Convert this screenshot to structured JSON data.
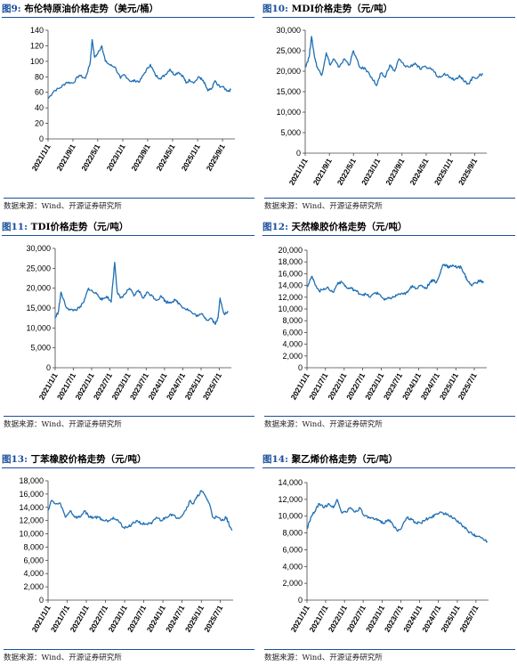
{
  "source_note": "数据来源：Wind、开源证券研究所",
  "line_color": "#1f6fb4",
  "chart_data": [
    {
      "id": "brent",
      "type": "line",
      "fig": "图9:",
      "title": "布伦特原油价格走势（美元/桶）",
      "ylim": [
        0,
        140
      ],
      "yticks": [
        0,
        20,
        40,
        60,
        80,
        100,
        120,
        140
      ],
      "xlim": [
        "2021-01-01",
        "2025-12-31"
      ],
      "xticks": [
        "2021/1/1",
        "2021/9/1",
        "2022/5/1",
        "2023/1/1",
        "2023/9/1",
        "2024/5/1",
        "2025/1/1",
        "2025/9/1"
      ],
      "x": [
        "2021-01-01",
        "2021-03-01",
        "2021-05-01",
        "2021-07-01",
        "2021-09-01",
        "2021-11-01",
        "2022-01-01",
        "2022-02-15",
        "2022-03-08",
        "2022-04-01",
        "2022-05-01",
        "2022-06-10",
        "2022-07-15",
        "2022-09-01",
        "2022-10-15",
        "2022-12-10",
        "2023-01-15",
        "2023-03-20",
        "2023-05-01",
        "2023-06-15",
        "2023-08-01",
        "2023-09-27",
        "2023-11-15",
        "2024-01-01",
        "2024-02-15",
        "2024-04-05",
        "2024-05-15",
        "2024-07-01",
        "2024-08-15",
        "2024-09-10",
        "2024-10-15",
        "2024-12-01",
        "2025-01-15",
        "2025-02-15",
        "2025-03-15",
        "2025-04-10",
        "2025-05-15",
        "2025-06-20",
        "2025-07-15",
        "2025-09-01",
        "2025-10-20",
        "2025-11-20"
      ],
      "y": [
        52,
        62,
        66,
        73,
        72,
        82,
        78,
        97,
        128,
        105,
        110,
        120,
        100,
        95,
        93,
        78,
        83,
        74,
        75,
        74,
        85,
        96,
        82,
        78,
        82,
        90,
        83,
        86,
        80,
        72,
        76,
        73,
        80,
        76,
        70,
        62,
        64,
        75,
        69,
        67,
        62,
        63
      ]
    },
    {
      "id": "mdi",
      "type": "line",
      "fig": "图10:",
      "title": "MDI价格走势（元/吨）",
      "ylim": [
        0,
        30000
      ],
      "yticks": [
        0,
        5000,
        10000,
        15000,
        20000,
        25000,
        30000
      ],
      "xlim": [
        "2021-01-01",
        "2025-12-31"
      ],
      "xticks": [
        "2021/1/1",
        "2021/9/1",
        "2022/5/1",
        "2023/1/1",
        "2023/9/1",
        "2024/5/1",
        "2025/1/1",
        "2025/9/1"
      ],
      "x": [
        "2021-01-01",
        "2021-02-10",
        "2021-03-05",
        "2021-04-01",
        "2021-05-01",
        "2021-06-15",
        "2021-08-01",
        "2021-09-10",
        "2021-10-15",
        "2021-12-01",
        "2022-02-01",
        "2022-03-20",
        "2022-05-01",
        "2022-07-01",
        "2022-09-01",
        "2022-11-01",
        "2022-12-20",
        "2023-02-01",
        "2023-03-15",
        "2023-05-01",
        "2023-06-20",
        "2023-08-01",
        "2023-09-20",
        "2023-11-15",
        "2024-01-10",
        "2024-03-01",
        "2024-05-01",
        "2024-07-01",
        "2024-09-01",
        "2024-11-01",
        "2025-01-01",
        "2025-02-15",
        "2025-04-01",
        "2025-05-15",
        "2025-07-01",
        "2025-08-15",
        "2025-10-01",
        "2025-11-20"
      ],
      "y": [
        21000,
        23500,
        28500,
        24000,
        21000,
        19000,
        24500,
        21500,
        23000,
        21000,
        23000,
        21500,
        25000,
        21000,
        20500,
        18500,
        16500,
        19500,
        18500,
        21500,
        20000,
        23000,
        21500,
        21000,
        22000,
        20500,
        21000,
        20500,
        18500,
        19500,
        18500,
        18000,
        19000,
        17500,
        17000,
        18500,
        18500,
        19500
      ]
    },
    {
      "id": "tdi",
      "type": "line",
      "fig": "图11:",
      "title": "TDI价格走势（元/吨）",
      "ylim": [
        0,
        30000
      ],
      "yticks": [
        0,
        5000,
        10000,
        15000,
        20000,
        25000,
        30000
      ],
      "xlim": [
        "2021-01-01",
        "2025-10-31"
      ],
      "xticks": [
        "2021/1/1",
        "2021/7/1",
        "2022/1/1",
        "2022/7/1",
        "2023/1/1",
        "2023/7/1",
        "2024/1/1",
        "2024/7/1",
        "2025/1/1",
        "2025/7/1"
      ],
      "x": [
        "2021-01-01",
        "2021-02-01",
        "2021-03-01",
        "2021-04-15",
        "2021-06-01",
        "2021-07-15",
        "2021-09-01",
        "2021-10-15",
        "2021-12-01",
        "2022-01-15",
        "2022-03-01",
        "2022-04-15",
        "2022-06-01",
        "2022-07-15",
        "2022-08-20",
        "2022-09-15",
        "2022-10-15",
        "2022-12-01",
        "2023-01-15",
        "2023-03-01",
        "2023-04-15",
        "2023-06-01",
        "2023-07-15",
        "2023-09-01",
        "2023-10-15",
        "2023-12-01",
        "2024-01-15",
        "2024-03-01",
        "2024-04-15",
        "2024-06-01",
        "2024-07-15",
        "2024-09-01",
        "2024-10-15",
        "2024-12-01",
        "2025-01-15",
        "2025-03-01",
        "2025-04-15",
        "2025-05-20",
        "2025-06-20",
        "2025-07-10",
        "2025-08-20",
        "2025-09-30"
      ],
      "y": [
        12500,
        14000,
        19000,
        15500,
        14500,
        14500,
        15000,
        16500,
        20000,
        19000,
        18500,
        17000,
        18000,
        16500,
        26500,
        19000,
        17500,
        18500,
        20000,
        18000,
        19500,
        17500,
        19000,
        18000,
        17000,
        18000,
        16500,
        16500,
        17000,
        16000,
        15000,
        14500,
        13500,
        13000,
        13500,
        12000,
        12500,
        11000,
        12500,
        17500,
        13500,
        14000
      ]
    },
    {
      "id": "natural-rubber",
      "type": "line",
      "fig": "图12:",
      "title": "天然橡胶价格走势（元/吨）",
      "ylim": [
        0,
        20000
      ],
      "yticks": [
        0,
        2000,
        4000,
        6000,
        8000,
        10000,
        12000,
        14000,
        16000,
        18000,
        20000
      ],
      "xlim": [
        "2021-01-01",
        "2025-10-31"
      ],
      "xticks": [
        "2021/1/1",
        "2021/7/1",
        "2022/1/1",
        "2022/7/1",
        "2023/1/1",
        "2023/7/1",
        "2024/1/1",
        "2024/7/1",
        "2025/1/1",
        "2025/7/1"
      ],
      "x": [
        "2021-01-01",
        "2021-02-15",
        "2021-03-15",
        "2021-05-01",
        "2021-06-15",
        "2021-08-01",
        "2021-09-15",
        "2021-11-01",
        "2021-12-15",
        "2022-02-01",
        "2022-03-15",
        "2022-05-01",
        "2022-06-15",
        "2022-08-01",
        "2022-09-15",
        "2022-11-01",
        "2022-12-15",
        "2023-02-01",
        "2023-03-15",
        "2023-05-01",
        "2023-06-15",
        "2023-08-01",
        "2023-09-15",
        "2023-11-01",
        "2023-12-15",
        "2024-02-01",
        "2024-03-15",
        "2024-04-20",
        "2024-05-20",
        "2024-06-25",
        "2024-07-20",
        "2024-08-25",
        "2024-10-01",
        "2024-10-25",
        "2024-12-01",
        "2025-01-15",
        "2025-02-20",
        "2025-03-25",
        "2025-04-20",
        "2025-06-01",
        "2025-07-15",
        "2025-08-25",
        "2025-09-30"
      ],
      "y": [
        13800,
        15500,
        14500,
        13000,
        13500,
        13500,
        12800,
        14500,
        14500,
        13500,
        13500,
        13000,
        12500,
        12500,
        12000,
        12800,
        12500,
        11500,
        11800,
        12000,
        12500,
        12500,
        12800,
        14000,
        13500,
        14000,
        13500,
        14500,
        15000,
        14500,
        15500,
        17500,
        17500,
        17000,
        17500,
        17000,
        17200,
        16000,
        15000,
        14000,
        14500,
        14800,
        14500
      ]
    },
    {
      "id": "sbr",
      "type": "line",
      "fig": "图13:",
      "title": "丁苯橡胶价格走势（元/吨）",
      "ylim": [
        0,
        18000
      ],
      "yticks": [
        0,
        2000,
        4000,
        6000,
        8000,
        10000,
        12000,
        14000,
        16000,
        18000
      ],
      "xlim": [
        "2021-01-01",
        "2025-10-31"
      ],
      "xticks": [
        "2021/1/1",
        "2021/7/1",
        "2022/1/1",
        "2022/7/1",
        "2023/1/1",
        "2023/7/1",
        "2024/1/1",
        "2024/7/1",
        "2025/1/1",
        "2025/7/1"
      ],
      "x": [
        "2021-01-01",
        "2021-02-01",
        "2021-03-15",
        "2021-05-01",
        "2021-06-15",
        "2021-08-01",
        "2021-09-15",
        "2021-11-01",
        "2021-12-15",
        "2022-02-01",
        "2022-03-15",
        "2022-05-01",
        "2022-06-15",
        "2022-08-01",
        "2022-09-15",
        "2022-11-01",
        "2022-12-15",
        "2023-02-01",
        "2023-03-15",
        "2023-05-01",
        "2023-06-15",
        "2023-08-01",
        "2023-09-15",
        "2023-11-01",
        "2023-12-15",
        "2024-02-01",
        "2024-03-15",
        "2024-05-01",
        "2024-06-15",
        "2024-08-01",
        "2024-09-15",
        "2024-10-15",
        "2024-11-20",
        "2025-01-01",
        "2025-02-15",
        "2025-03-20",
        "2025-04-20",
        "2025-06-01",
        "2025-07-15",
        "2025-08-25",
        "2025-09-20",
        "2025-10-20"
      ],
      "y": [
        13500,
        15000,
        14500,
        14500,
        12500,
        13500,
        12500,
        12500,
        13500,
        12500,
        12500,
        12500,
        12000,
        12000,
        12500,
        12000,
        11000,
        11000,
        11500,
        12000,
        11500,
        11500,
        11500,
        12500,
        12000,
        12500,
        13000,
        12500,
        12500,
        13500,
        15000,
        14500,
        15500,
        16500,
        15500,
        14500,
        12500,
        12500,
        12000,
        12500,
        11500,
        10500
      ]
    },
    {
      "id": "polyethylene",
      "type": "line",
      "fig": "图14:",
      "title": "聚乙烯价格走势（元/吨）",
      "ylim": [
        0,
        14000
      ],
      "yticks": [
        0,
        2000,
        4000,
        6000,
        8000,
        10000,
        12000,
        14000
      ],
      "xlim": [
        "2021-01-01",
        "2025-10-31"
      ],
      "xticks": [
        "2021/1/1",
        "2021/7/1",
        "2022/1/1",
        "2022/7/1",
        "2023/1/1",
        "2023/7/1",
        "2024/1/1",
        "2024/7/1",
        "2025/1/1",
        "2025/7/1"
      ],
      "x": [
        "2021-01-01",
        "2021-02-15",
        "2021-03-15",
        "2021-05-01",
        "2021-06-15",
        "2021-08-01",
        "2021-09-15",
        "2021-10-20",
        "2021-12-01",
        "2022-01-15",
        "2022-03-01",
        "2022-04-15",
        "2022-06-01",
        "2022-07-15",
        "2022-09-01",
        "2022-10-15",
        "2022-12-01",
        "2023-01-15",
        "2023-03-01",
        "2023-04-15",
        "2023-06-01",
        "2023-07-15",
        "2023-09-01",
        "2023-10-15",
        "2023-12-01",
        "2024-01-15",
        "2024-03-01",
        "2024-04-15",
        "2024-06-01",
        "2024-07-15",
        "2024-09-01",
        "2024-10-15",
        "2024-12-01",
        "2025-01-15",
        "2025-03-01",
        "2025-04-15",
        "2025-06-01",
        "2025-07-15",
        "2025-09-01",
        "2025-10-20"
      ],
      "y": [
        8500,
        10000,
        10500,
        11500,
        11000,
        11500,
        11000,
        12000,
        10500,
        10500,
        11000,
        10500,
        11000,
        10000,
        9800,
        9600,
        9500,
        9200,
        9600,
        9000,
        8200,
        8800,
        9800,
        9600,
        9200,
        9200,
        9600,
        9800,
        10200,
        10500,
        10300,
        10000,
        9800,
        9200,
        8800,
        8200,
        7800,
        7600,
        7400,
        7000
      ]
    }
  ]
}
